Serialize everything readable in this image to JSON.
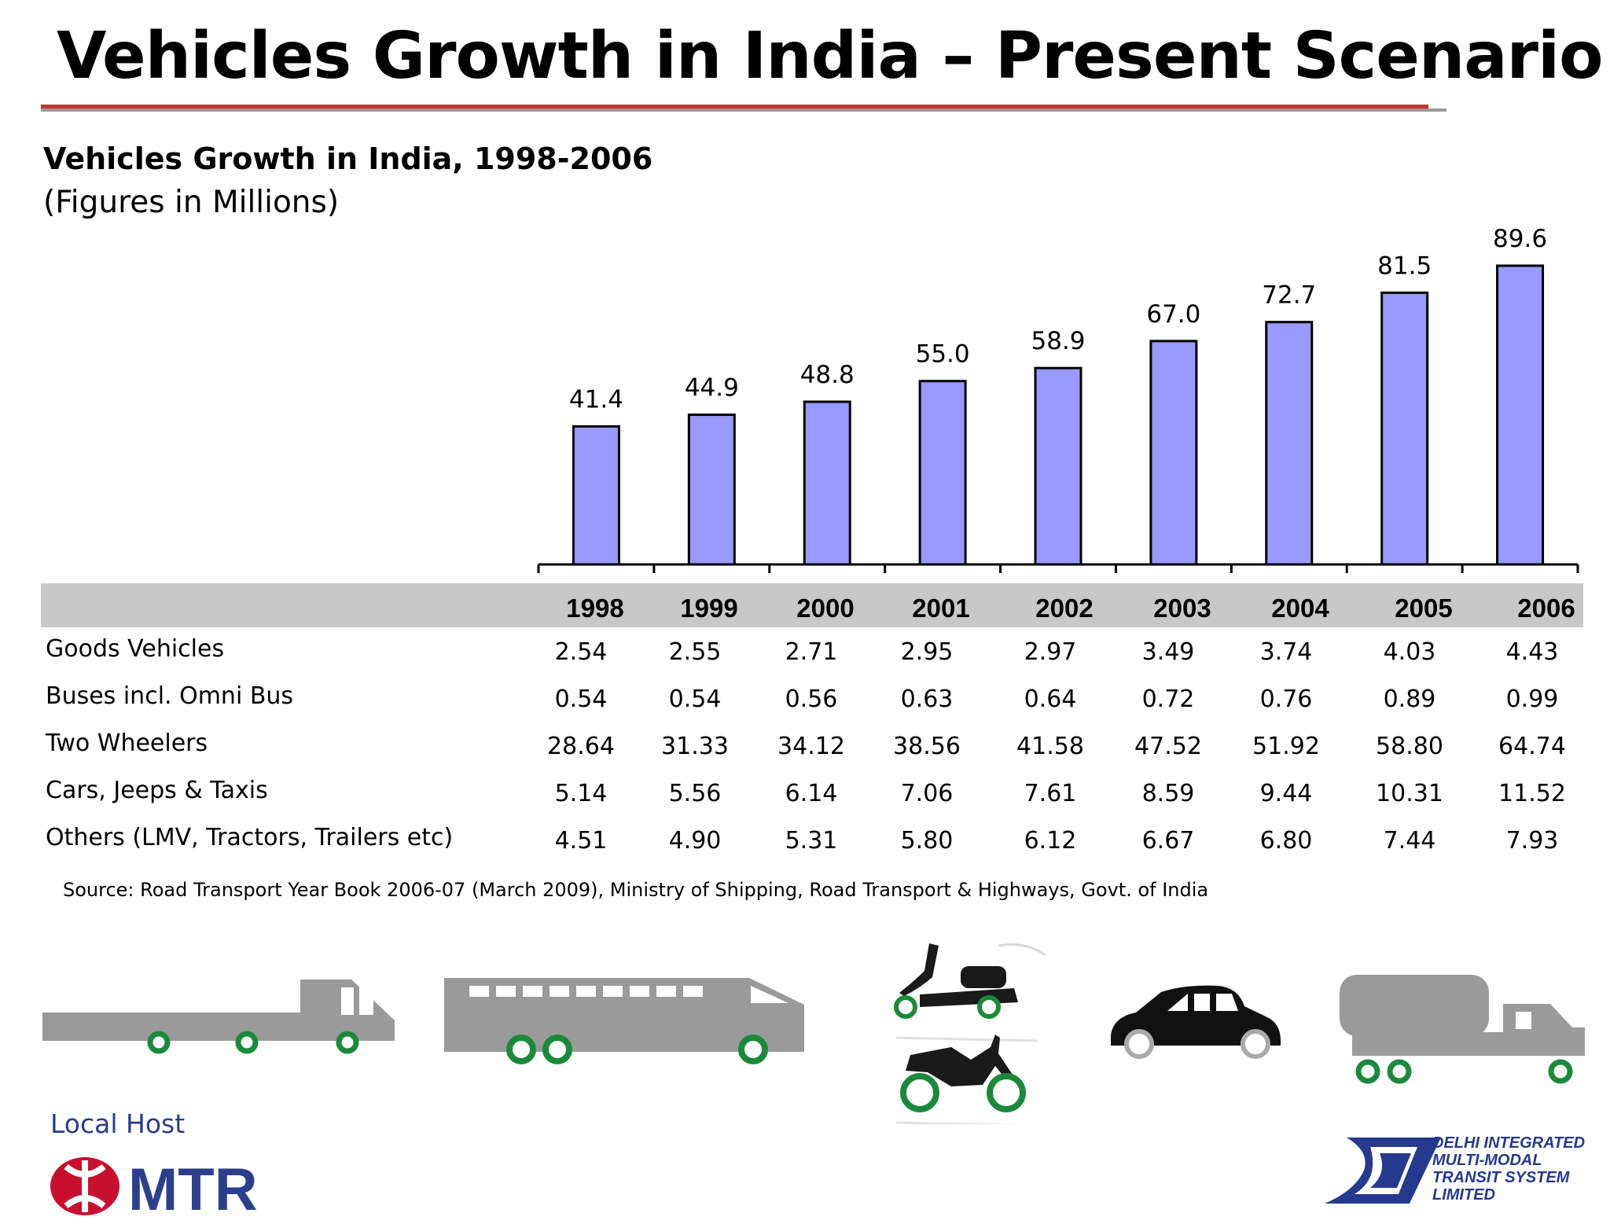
{
  "page": {
    "title": "Vehicles Growth in India – Present Scenario",
    "subtitle": "Vehicles Growth in India, 1998-2006",
    "subnote": "(Figures in Millions)",
    "source": "Source: Road Transport Year Book 2006-07 (March 2009), Ministry of Shipping, Road Transport & Highways, Govt. of India"
  },
  "chart_data": {
    "type": "bar",
    "categories": [
      "1998",
      "1999",
      "2000",
      "2001",
      "2002",
      "2003",
      "2004",
      "2005",
      "2006"
    ],
    "values": [
      41.4,
      44.9,
      48.8,
      55.0,
      58.9,
      67.0,
      72.7,
      81.5,
      89.6
    ],
    "labels": [
      "41.4",
      "44.9",
      "48.8",
      "55.0",
      "58.9",
      "67.0",
      "72.7",
      "81.5",
      "89.6"
    ],
    "title": "Vehicles Growth in India, 1998-2006",
    "bar_color": "#9999ff",
    "ylim": [
      0,
      89.6
    ],
    "grid": false
  },
  "table": {
    "years": [
      "1998",
      "1999",
      "2000",
      "2001",
      "2002",
      "2003",
      "2004",
      "2005",
      "2006"
    ],
    "rows": [
      {
        "label": "Goods Vehicles",
        "values": [
          "2.54",
          "2.55",
          "2.71",
          "2.95",
          "2.97",
          "3.49",
          "3.74",
          "4.03",
          "4.43"
        ]
      },
      {
        "label": "Buses incl. Omni Bus",
        "values": [
          "0.54",
          "0.54",
          "0.56",
          "0.63",
          "0.64",
          "0.72",
          "0.76",
          "0.89",
          "0.99"
        ]
      },
      {
        "label": "Two Wheelers",
        "values": [
          "28.64",
          "31.33",
          "34.12",
          "38.56",
          "41.58",
          "47.52",
          "51.92",
          "58.80",
          "64.74"
        ]
      },
      {
        "label": "Cars, Jeeps & Taxis",
        "values": [
          "5.14",
          "5.56",
          "6.14",
          "7.06",
          "7.61",
          "8.59",
          "9.44",
          "10.31",
          "11.52"
        ]
      },
      {
        "label": "Others (LMV, Tractors, Trailers etc)",
        "values": [
          "4.51",
          "4.90",
          "5.31",
          "5.80",
          "6.12",
          "6.67",
          "6.80",
          "7.44",
          "7.93"
        ]
      }
    ]
  },
  "icons": [
    "flatbed-truck-icon",
    "bus-icon",
    "scooter-icon",
    "motorcycle-icon",
    "car-icon",
    "tanker-truck-icon"
  ],
  "footer": {
    "local_host_label": "Local Host",
    "mtr_logo_text": "MTR",
    "dimts_lines": [
      "DELHI INTEGRATED",
      "MULTI-MODAL",
      "TRANSIT SYSTEM",
      "LIMITED"
    ]
  },
  "colors": {
    "title_rule_red": "#c0392b",
    "table_header_bg": "#c8c8c8",
    "icon_grey": "#9a9a9a",
    "wheel_green": "#1a8a3a",
    "mtr_red": "#c8102e",
    "dimts_blue": "#253a8e"
  }
}
